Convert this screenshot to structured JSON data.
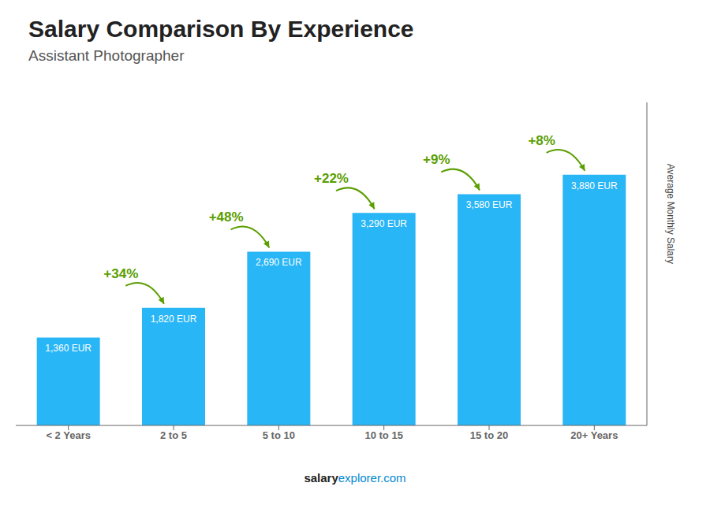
{
  "chart_data": {
    "type": "bar",
    "title": "Salary Comparison By Experience",
    "subtitle": "Assistant Photographer",
    "categories": [
      "< 2 Years",
      "2 to 5",
      "5 to 10",
      "10 to 15",
      "15 to 20",
      "20+ Years"
    ],
    "values": [
      1360,
      1820,
      2690,
      3290,
      3580,
      3880
    ],
    "value_labels": [
      "1,360 EUR",
      "1,820 EUR",
      "2,690 EUR",
      "3,290 EUR",
      "3,580 EUR",
      "3,880 EUR"
    ],
    "data_labels": true,
    "color": "#29b6f6",
    "ylabel": "Average Monthly Salary",
    "ylim": [
      0,
      5000
    ],
    "annotations": [
      "+34%",
      "+48%",
      "+22%",
      "+9%",
      "+8%"
    ],
    "footer": [
      "salary",
      "explorer.com"
    ],
    "grid": false,
    "tick_labels": "x"
  }
}
